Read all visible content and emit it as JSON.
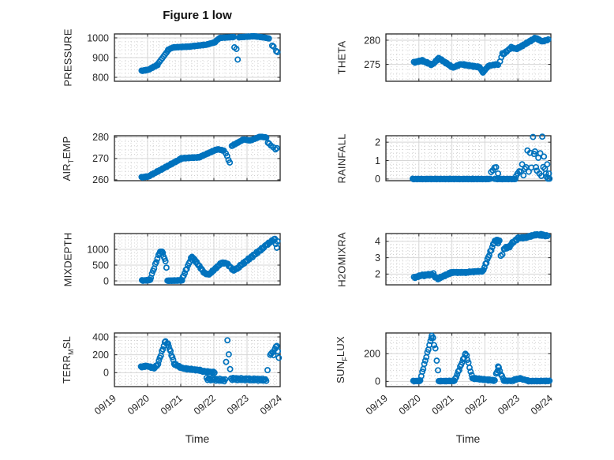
{
  "figure": {
    "title": "Figure 1 low",
    "xlabel": "Time",
    "background": "#ffffff",
    "marker": {
      "color": "#0072BD",
      "shape": "open-circle",
      "radius": 3.1,
      "stroke_width": 1.7
    },
    "axis_color": "#262626",
    "major_grid_color": "#d6d6d6",
    "minor_grid_color": "#d0d0d0",
    "text_color": "#262626"
  },
  "time_axis": {
    "label": "Time",
    "tick_labels": [
      "09/19",
      "09/20",
      "09/21",
      "09/22",
      "09/23",
      "09/24"
    ],
    "range_days": [
      0,
      5
    ],
    "tick_angle_deg": 40,
    "minor_per_day": 6
  },
  "chart_data": [
    {
      "type": "scatter",
      "name": "pressure",
      "ylabel": "PRESSURE",
      "row": 0,
      "col": 0,
      "yticks": [
        800,
        900,
        1000
      ],
      "ylim": [
        780,
        1020
      ],
      "yminor": 20,
      "segments": [
        [
          0.82,
          833,
          1.04,
          839,
          9,
          1.5
        ],
        [
          1.06,
          842,
          1.3,
          863,
          9,
          2
        ],
        [
          1.32,
          870,
          1.6,
          932,
          8,
          0
        ],
        [
          1.62,
          940,
          1.76,
          951,
          5,
          1
        ],
        [
          1.78,
          952,
          2.3,
          956,
          18,
          1.5
        ],
        [
          2.32,
          957,
          2.8,
          966,
          16,
          1.5
        ],
        [
          2.82,
          968,
          3.04,
          978,
          8,
          1
        ],
        [
          3.06,
          984,
          3.16,
          997,
          4,
          0
        ],
        [
          3.18,
          1000,
          3.6,
          1004,
          15,
          1
        ],
        [
          3.76,
          1003,
          4.2,
          1008,
          15,
          1
        ],
        [
          4.22,
          1008,
          4.56,
          1001,
          12,
          1
        ],
        [
          4.58,
          1000,
          4.66,
          997,
          3,
          0
        ]
      ],
      "points": [
        [
          3.62,
          952
        ],
        [
          3.68,
          944
        ],
        [
          3.72,
          890
        ],
        [
          4.76,
          961
        ],
        [
          4.8,
          956
        ],
        [
          4.88,
          933
        ],
        [
          4.92,
          928
        ]
      ]
    },
    {
      "type": "scatter",
      "name": "theta",
      "ylabel": "THETA",
      "row": 0,
      "col": 1,
      "yticks": [
        275,
        280
      ],
      "ylim": [
        271.5,
        281.3
      ],
      "yminor": 1,
      "segments": [
        [
          0.85,
          275.4,
          1.1,
          275.8,
          9,
          0.12
        ],
        [
          1.12,
          275.7,
          1.4,
          274.9,
          10,
          0.12
        ],
        [
          1.42,
          275.0,
          1.6,
          276.3,
          7,
          0.1
        ],
        [
          1.62,
          276.2,
          2.04,
          274.3,
          14,
          0.12
        ],
        [
          2.06,
          274.4,
          2.28,
          275.1,
          8,
          0.1
        ],
        [
          2.3,
          275.0,
          2.84,
          274.4,
          18,
          0.12
        ],
        [
          2.86,
          274.2,
          2.94,
          273.3,
          4,
          0
        ],
        [
          2.96,
          273.5,
          3.1,
          274.6,
          5,
          0.05
        ],
        [
          3.12,
          274.7,
          3.36,
          275.0,
          8,
          0.08
        ],
        [
          3.56,
          277.1,
          3.8,
          278.5,
          8,
          0.12
        ],
        [
          3.82,
          278.4,
          4.0,
          278.2,
          7,
          0.08
        ],
        [
          4.02,
          278.4,
          4.54,
          280.5,
          18,
          0.12
        ],
        [
          4.56,
          280.4,
          4.74,
          279.7,
          7,
          0.08
        ],
        [
          4.76,
          279.8,
          4.92,
          280.1,
          6,
          0.08
        ]
      ],
      "points": [
        [
          3.4,
          274.9
        ],
        [
          3.46,
          275.6
        ],
        [
          3.5,
          276.5
        ],
        [
          3.53,
          277.3
        ]
      ]
    },
    {
      "type": "scatter",
      "name": "air_temp",
      "ylabel": "AIR_TEMP",
      "row": 1,
      "col": 0,
      "yticks": [
        260,
        270,
        280
      ],
      "ylim": [
        259.6,
        280.7
      ],
      "yminor": 2,
      "segments": [
        [
          0.82,
          261.2,
          1.04,
          261.6,
          9,
          0.15
        ],
        [
          1.06,
          261.9,
          2.0,
          269.8,
          30,
          0.2
        ],
        [
          2.02,
          270.1,
          2.58,
          270.6,
          19,
          0.2
        ],
        [
          2.6,
          270.9,
          3.08,
          274.2,
          16,
          0.15
        ],
        [
          3.1,
          274.4,
          3.3,
          273.7,
          7,
          0.12
        ],
        [
          3.54,
          275.9,
          3.9,
          279.0,
          12,
          0.12
        ],
        [
          3.92,
          278.9,
          4.1,
          278.4,
          7,
          0.08
        ],
        [
          4.12,
          278.6,
          4.4,
          280.3,
          10,
          0.08
        ],
        [
          4.42,
          280.2,
          4.58,
          279.9,
          6,
          0.08
        ]
      ],
      "points": [
        [
          3.36,
          272.4
        ],
        [
          3.4,
          271.2
        ],
        [
          3.44,
          269.3
        ],
        [
          3.48,
          268.1
        ],
        [
          4.63,
          277.4
        ],
        [
          4.67,
          277.0
        ],
        [
          4.72,
          276.1
        ],
        [
          4.79,
          275.3
        ],
        [
          4.86,
          274.3
        ],
        [
          4.9,
          274.9
        ]
      ]
    },
    {
      "type": "scatter",
      "name": "rainfall",
      "ylabel": "RAINFALL",
      "row": 1,
      "col": 1,
      "yticks": [
        0,
        1,
        2
      ],
      "ylim": [
        -0.09,
        2.35
      ],
      "yminor": 0.2,
      "segments": [
        [
          0.81,
          0,
          3.16,
          0,
          72,
          0.015
        ],
        [
          3.3,
          0,
          3.46,
          0,
          5,
          0.015
        ],
        [
          3.5,
          0,
          3.92,
          0,
          13,
          0.015
        ]
      ],
      "points": [
        [
          3.19,
          0.38
        ],
        [
          3.24,
          0.47
        ],
        [
          3.29,
          0.62
        ],
        [
          3.34,
          0.64
        ],
        [
          3.4,
          0.3
        ],
        [
          3.95,
          0.17
        ],
        [
          3.99,
          0.3
        ],
        [
          4.04,
          0.42
        ],
        [
          4.09,
          0.4
        ],
        [
          4.13,
          0.8
        ],
        [
          4.17,
          0.2
        ],
        [
          4.21,
          0.55
        ],
        [
          4.25,
          0.64
        ],
        [
          4.29,
          1.55
        ],
        [
          4.33,
          0.4
        ],
        [
          4.37,
          1.42
        ],
        [
          4.41,
          0.62
        ],
        [
          4.46,
          2.28
        ],
        [
          4.49,
          1.36
        ],
        [
          4.52,
          1.5
        ],
        [
          4.55,
          0.64
        ],
        [
          4.58,
          0.45
        ],
        [
          4.62,
          1.15
        ],
        [
          4.65,
          0.3
        ],
        [
          4.68,
          1.4
        ],
        [
          4.71,
          0.17
        ],
        [
          4.74,
          2.3
        ],
        [
          4.77,
          0.65
        ],
        [
          4.79,
          1.22
        ],
        [
          4.82,
          0.55
        ],
        [
          4.85,
          0.3
        ],
        [
          4.87,
          0.12
        ],
        [
          4.89,
          0.8
        ],
        [
          4.91,
          0.02
        ],
        [
          4.94,
          0.3
        ],
        [
          4.96,
          0.02
        ]
      ]
    },
    {
      "type": "scatter",
      "name": "mixdepth",
      "ylabel": "MIXDEPTH",
      "row": 2,
      "col": 0,
      "yticks": [
        0,
        500,
        1000
      ],
      "ylim": [
        -125,
        1500
      ],
      "yminor": 100,
      "segments": [
        [
          0.83,
          10,
          1.08,
          25,
          9,
          12
        ],
        [
          1.1,
          120,
          1.36,
          900,
          9,
          25
        ],
        [
          1.38,
          920,
          1.44,
          930,
          3,
          10
        ],
        [
          1.46,
          870,
          1.54,
          610,
          4,
          20
        ],
        [
          1.6,
          5,
          2.04,
          15,
          22,
          10
        ],
        [
          2.06,
          100,
          2.34,
          780,
          10,
          25
        ],
        [
          2.36,
          750,
          2.72,
          240,
          13,
          25
        ],
        [
          2.74,
          220,
          2.88,
          215,
          6,
          15
        ],
        [
          2.9,
          250,
          3.22,
          560,
          12,
          22
        ],
        [
          3.24,
          575,
          3.4,
          555,
          6,
          18
        ],
        [
          3.42,
          520,
          3.58,
          345,
          6,
          22
        ],
        [
          3.6,
          335,
          3.74,
          420,
          5,
          18
        ],
        [
          3.76,
          450,
          4.54,
          1090,
          26,
          30
        ],
        [
          4.56,
          1120,
          4.84,
          1330,
          10,
          22
        ]
      ],
      "points": [
        [
          1.57,
          420
        ],
        [
          4.87,
          1170
        ],
        [
          4.9,
          1050
        ],
        [
          4.92,
          1255
        ]
      ]
    },
    {
      "type": "scatter",
      "name": "h2omixra",
      "ylabel": "H2OMIXRA",
      "row": 2,
      "col": 1,
      "yticks": [
        2,
        3,
        4
      ],
      "ylim": [
        1.34,
        4.48
      ],
      "yminor": 0.2,
      "segments": [
        [
          0.85,
          1.78,
          1.14,
          1.95,
          10,
          0.04
        ],
        [
          1.16,
          1.92,
          1.44,
          2.0,
          10,
          0.05
        ],
        [
          1.46,
          1.86,
          1.58,
          1.72,
          5,
          0.04
        ],
        [
          1.6,
          1.74,
          1.94,
          2.05,
          12,
          0.04
        ],
        [
          1.96,
          2.1,
          2.48,
          2.1,
          18,
          0.03
        ],
        [
          2.5,
          2.12,
          2.94,
          2.18,
          15,
          0.03
        ],
        [
          2.96,
          2.28,
          3.28,
          3.95,
          12,
          0.06
        ],
        [
          3.3,
          4.0,
          3.44,
          4.05,
          6,
          0.06
        ],
        [
          3.58,
          3.55,
          3.78,
          3.72,
          8,
          0.06
        ],
        [
          3.8,
          3.85,
          4.0,
          4.18,
          7,
          0.05
        ],
        [
          4.02,
          4.2,
          4.28,
          4.24,
          9,
          0.04
        ],
        [
          4.3,
          4.28,
          4.58,
          4.42,
          10,
          0.04
        ],
        [
          4.6,
          4.4,
          4.9,
          4.34,
          10,
          0.04
        ]
      ],
      "points": [
        [
          3.36,
          4.1
        ],
        [
          3.4,
          3.88
        ],
        [
          3.48,
          3.12
        ],
        [
          3.53,
          3.2
        ],
        [
          4.7,
          4.45
        ],
        [
          4.76,
          4.42
        ]
      ]
    },
    {
      "type": "scatter",
      "name": "terr_msl",
      "ylabel": "TERR_MSL",
      "row": 3,
      "col": 0,
      "yticks": [
        0,
        200,
        400
      ],
      "ylim": [
        -156,
        444
      ],
      "yminor": 40,
      "segments": [
        [
          0.8,
          62,
          1.0,
          78,
          8,
          7
        ],
        [
          1.02,
          70,
          1.2,
          52,
          7,
          7
        ],
        [
          1.22,
          60,
          1.32,
          95,
          4,
          7
        ],
        [
          1.34,
          130,
          1.52,
          335,
          7,
          10
        ],
        [
          1.54,
          345,
          1.62,
          318,
          3,
          8
        ],
        [
          1.64,
          295,
          1.8,
          108,
          7,
          10
        ],
        [
          1.82,
          95,
          2.04,
          50,
          8,
          7
        ],
        [
          2.06,
          48,
          2.58,
          26,
          17,
          7
        ],
        [
          2.6,
          18,
          3.02,
          4,
          13,
          6
        ],
        [
          2.78,
          -70,
          3.34,
          -85,
          19,
          12
        ],
        [
          3.52,
          -70,
          4.58,
          -80,
          36,
          12
        ]
      ],
      "points": [
        [
          3.37,
          120
        ],
        [
          3.41,
          362
        ],
        [
          3.45,
          205
        ],
        [
          3.49,
          40
        ],
        [
          4.62,
          28
        ],
        [
          4.7,
          200
        ],
        [
          4.73,
          214
        ],
        [
          4.77,
          230
        ],
        [
          4.8,
          196
        ],
        [
          4.84,
          266
        ],
        [
          4.87,
          290
        ],
        [
          4.9,
          298
        ],
        [
          4.93,
          240
        ],
        [
          4.96,
          166
        ]
      ]
    },
    {
      "type": "scatter",
      "name": "sun_flux",
      "ylabel": "SUN_FLUX",
      "row": 3,
      "col": 1,
      "yticks": [
        0,
        200
      ],
      "ylim": [
        -38,
        350
      ],
      "yminor": 40,
      "segments": [
        [
          0.83,
          2,
          1.02,
          3,
          7,
          2
        ],
        [
          1.04,
          10,
          1.38,
          318,
          12,
          5
        ],
        [
          1.39,
          330,
          1.43,
          315,
          2,
          0
        ],
        [
          1.6,
          2,
          2.08,
          3,
          16,
          2
        ],
        [
          2.1,
          15,
          2.4,
          192,
          11,
          5
        ],
        [
          2.41,
          200,
          2.45,
          188,
          2,
          0
        ],
        [
          2.47,
          160,
          2.6,
          42,
          5,
          5
        ],
        [
          2.62,
          22,
          3.3,
          6,
          22,
          4
        ],
        [
          3.34,
          52,
          3.42,
          96,
          4,
          5
        ],
        [
          3.45,
          72,
          3.55,
          20,
          4,
          5
        ],
        [
          3.58,
          4,
          3.86,
          4,
          9,
          2
        ],
        [
          3.88,
          12,
          4.1,
          22,
          8,
          3
        ],
        [
          4.12,
          16,
          4.3,
          6,
          6,
          2
        ],
        [
          4.32,
          2,
          4.96,
          3,
          21,
          2
        ]
      ],
      "points": [
        [
          1.46,
          262
        ],
        [
          1.5,
          238
        ],
        [
          1.54,
          150
        ],
        [
          1.58,
          80
        ],
        [
          3.4,
          108
        ]
      ]
    }
  ]
}
